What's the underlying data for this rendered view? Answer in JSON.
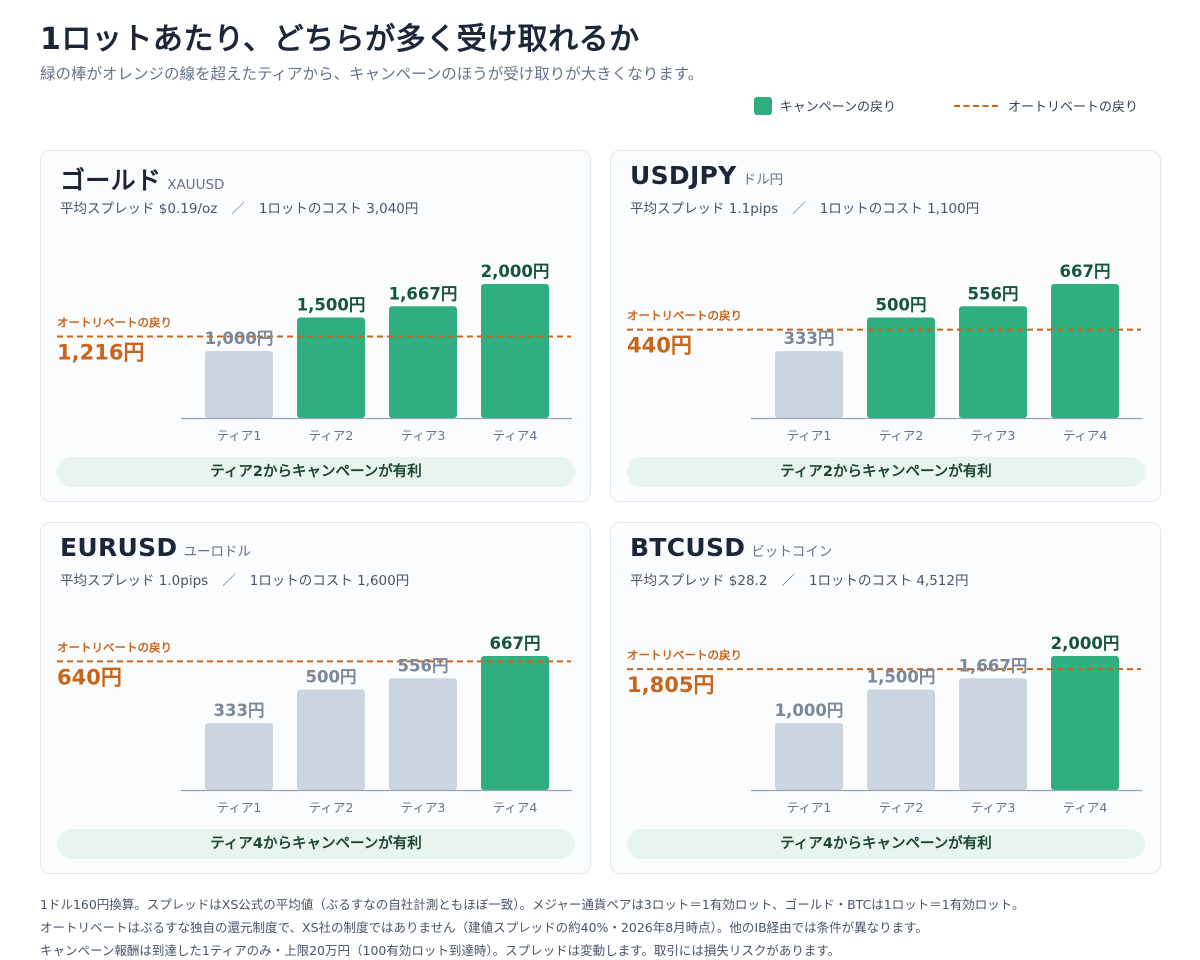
{
  "header": {
    "title": "1ロットあたり、どちらが多く受け取れるか",
    "subtitle": "緑の棒がオレンジの線を超えたティアから、キャンペーンのほうが受け取りが大きくなります。"
  },
  "legend": {
    "campaign_label": "キャンペーンの戻り",
    "rebate_label": "オートリベートの戻り"
  },
  "colors": {
    "campaign_bar": "#2fae7f",
    "rebate_line": "#c8651c",
    "lower_bar": "#cbd5e0",
    "campaign_value_text": "#16553d",
    "lower_value_text": "#7a8899"
  },
  "chart_data": [
    {
      "type": "bar",
      "name": "ゴールド",
      "symbol": "XAUUSD",
      "spread_text": "平均スプレッド $0.19/oz",
      "cost_text": "1ロットのコスト 3,040円",
      "categories": [
        "ティア1",
        "ティア2",
        "ティア3",
        "ティア4"
      ],
      "values": [
        1000,
        1500,
        1667,
        2000
      ],
      "value_labels": [
        "1,000円",
        "1,500円",
        "1,667円",
        "2,000円"
      ],
      "reference_line": {
        "label": "オートリベートの戻り",
        "value": 1216,
        "value_label": "1,216円"
      },
      "ylim": [
        0,
        2000
      ],
      "conclusion": "ティア2からキャンペーンが有利"
    },
    {
      "type": "bar",
      "name": "USDJPY",
      "symbol": "ドル円",
      "spread_text": "平均スプレッド 1.1pips",
      "cost_text": "1ロットのコスト 1,100円",
      "categories": [
        "ティア1",
        "ティア2",
        "ティア3",
        "ティア4"
      ],
      "values": [
        333,
        500,
        556,
        667
      ],
      "value_labels": [
        "333円",
        "500円",
        "556円",
        "667円"
      ],
      "reference_line": {
        "label": "オートリベートの戻り",
        "value": 440,
        "value_label": "440円"
      },
      "ylim": [
        0,
        667
      ],
      "conclusion": "ティア2からキャンペーンが有利"
    },
    {
      "type": "bar",
      "name": "EURUSD",
      "symbol": "ユーロドル",
      "spread_text": "平均スプレッド 1.0pips",
      "cost_text": "1ロットのコスト 1,600円",
      "categories": [
        "ティア1",
        "ティア2",
        "ティア3",
        "ティア4"
      ],
      "values": [
        333,
        500,
        556,
        667
      ],
      "value_labels": [
        "333円",
        "500円",
        "556円",
        "667円"
      ],
      "reference_line": {
        "label": "オートリベートの戻り",
        "value": 640,
        "value_label": "640円"
      },
      "ylim": [
        0,
        667
      ],
      "conclusion": "ティア4からキャンペーンが有利"
    },
    {
      "type": "bar",
      "name": "BTCUSD",
      "symbol": "ビットコイン",
      "spread_text": "平均スプレッド $28.2",
      "cost_text": "1ロットのコスト 4,512円",
      "categories": [
        "ティア1",
        "ティア2",
        "ティア3",
        "ティア4"
      ],
      "values": [
        1000,
        1500,
        1667,
        2000
      ],
      "value_labels": [
        "1,000円",
        "1,500円",
        "1,667円",
        "2,000円"
      ],
      "reference_line": {
        "label": "オートリベートの戻り",
        "value": 1805,
        "value_label": "1,805円"
      },
      "ylim": [
        0,
        2000
      ],
      "conclusion": "ティア4からキャンペーンが有利"
    }
  ],
  "notes": [
    "1ドル160円換算。スプレッドはXS公式の平均値（ぶるすなの自社計測ともほぼ一致）。メジャー通貨ペアは3ロット＝1有効ロット、ゴールド・BTCは1ロット＝1有効ロット。",
    "オートリベートはぶるすな独自の還元制度で、XS社の制度ではありません（建値スプレッドの約40%・2026年8月時点）。他のIB経由では条件が異なります。",
    "キャンペーン報酬は到達した1ティアのみ・上限20万円（100有効ロット到達時）。スプレッドは変動します。取引には損失リスクがあります。"
  ]
}
